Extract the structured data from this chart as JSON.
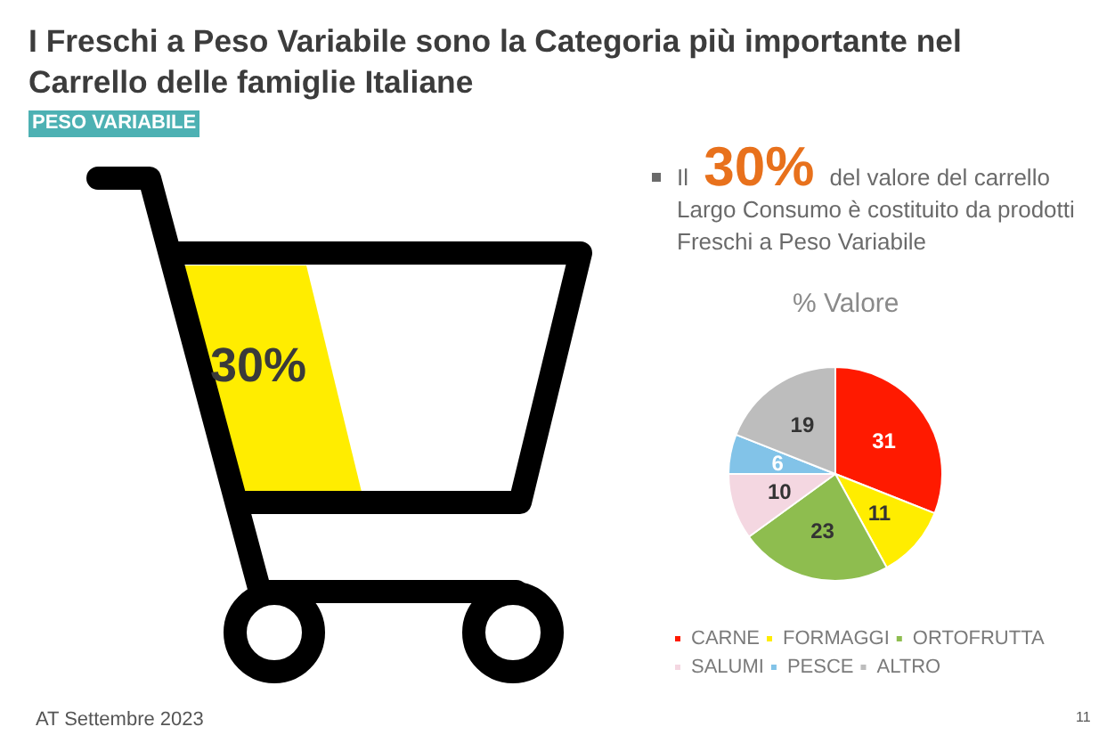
{
  "chart_data": [
    {
      "type": "other",
      "title": "I Freschi a Peso Variabile sono la Categoria più importante nel Carrello delle famiglie Italiane",
      "subtitle": "PESO VARIABILE",
      "annotations": [
        "30%",
        "Il 30% del valore del carrello Largo Consumo è costituito da prodotti Freschi a Peso Variabile",
        "AT Settembre 2023",
        "11"
      ]
    },
    {
      "type": "pie",
      "title": "% Valore",
      "categories": [
        "CARNE",
        "FORMAGGI",
        "ORTOFRUTTA",
        "SALUMI",
        "PESCE",
        "ALTRO"
      ],
      "values": [
        31,
        11,
        23,
        10,
        6,
        19
      ],
      "colors": [
        "#ff1a00",
        "#ffed00",
        "#8ebd4f",
        "#f4d7e1",
        "#82c3e8",
        "#bdbdbd"
      ],
      "data_labels": true,
      "legend": "bottom"
    }
  ]
}
